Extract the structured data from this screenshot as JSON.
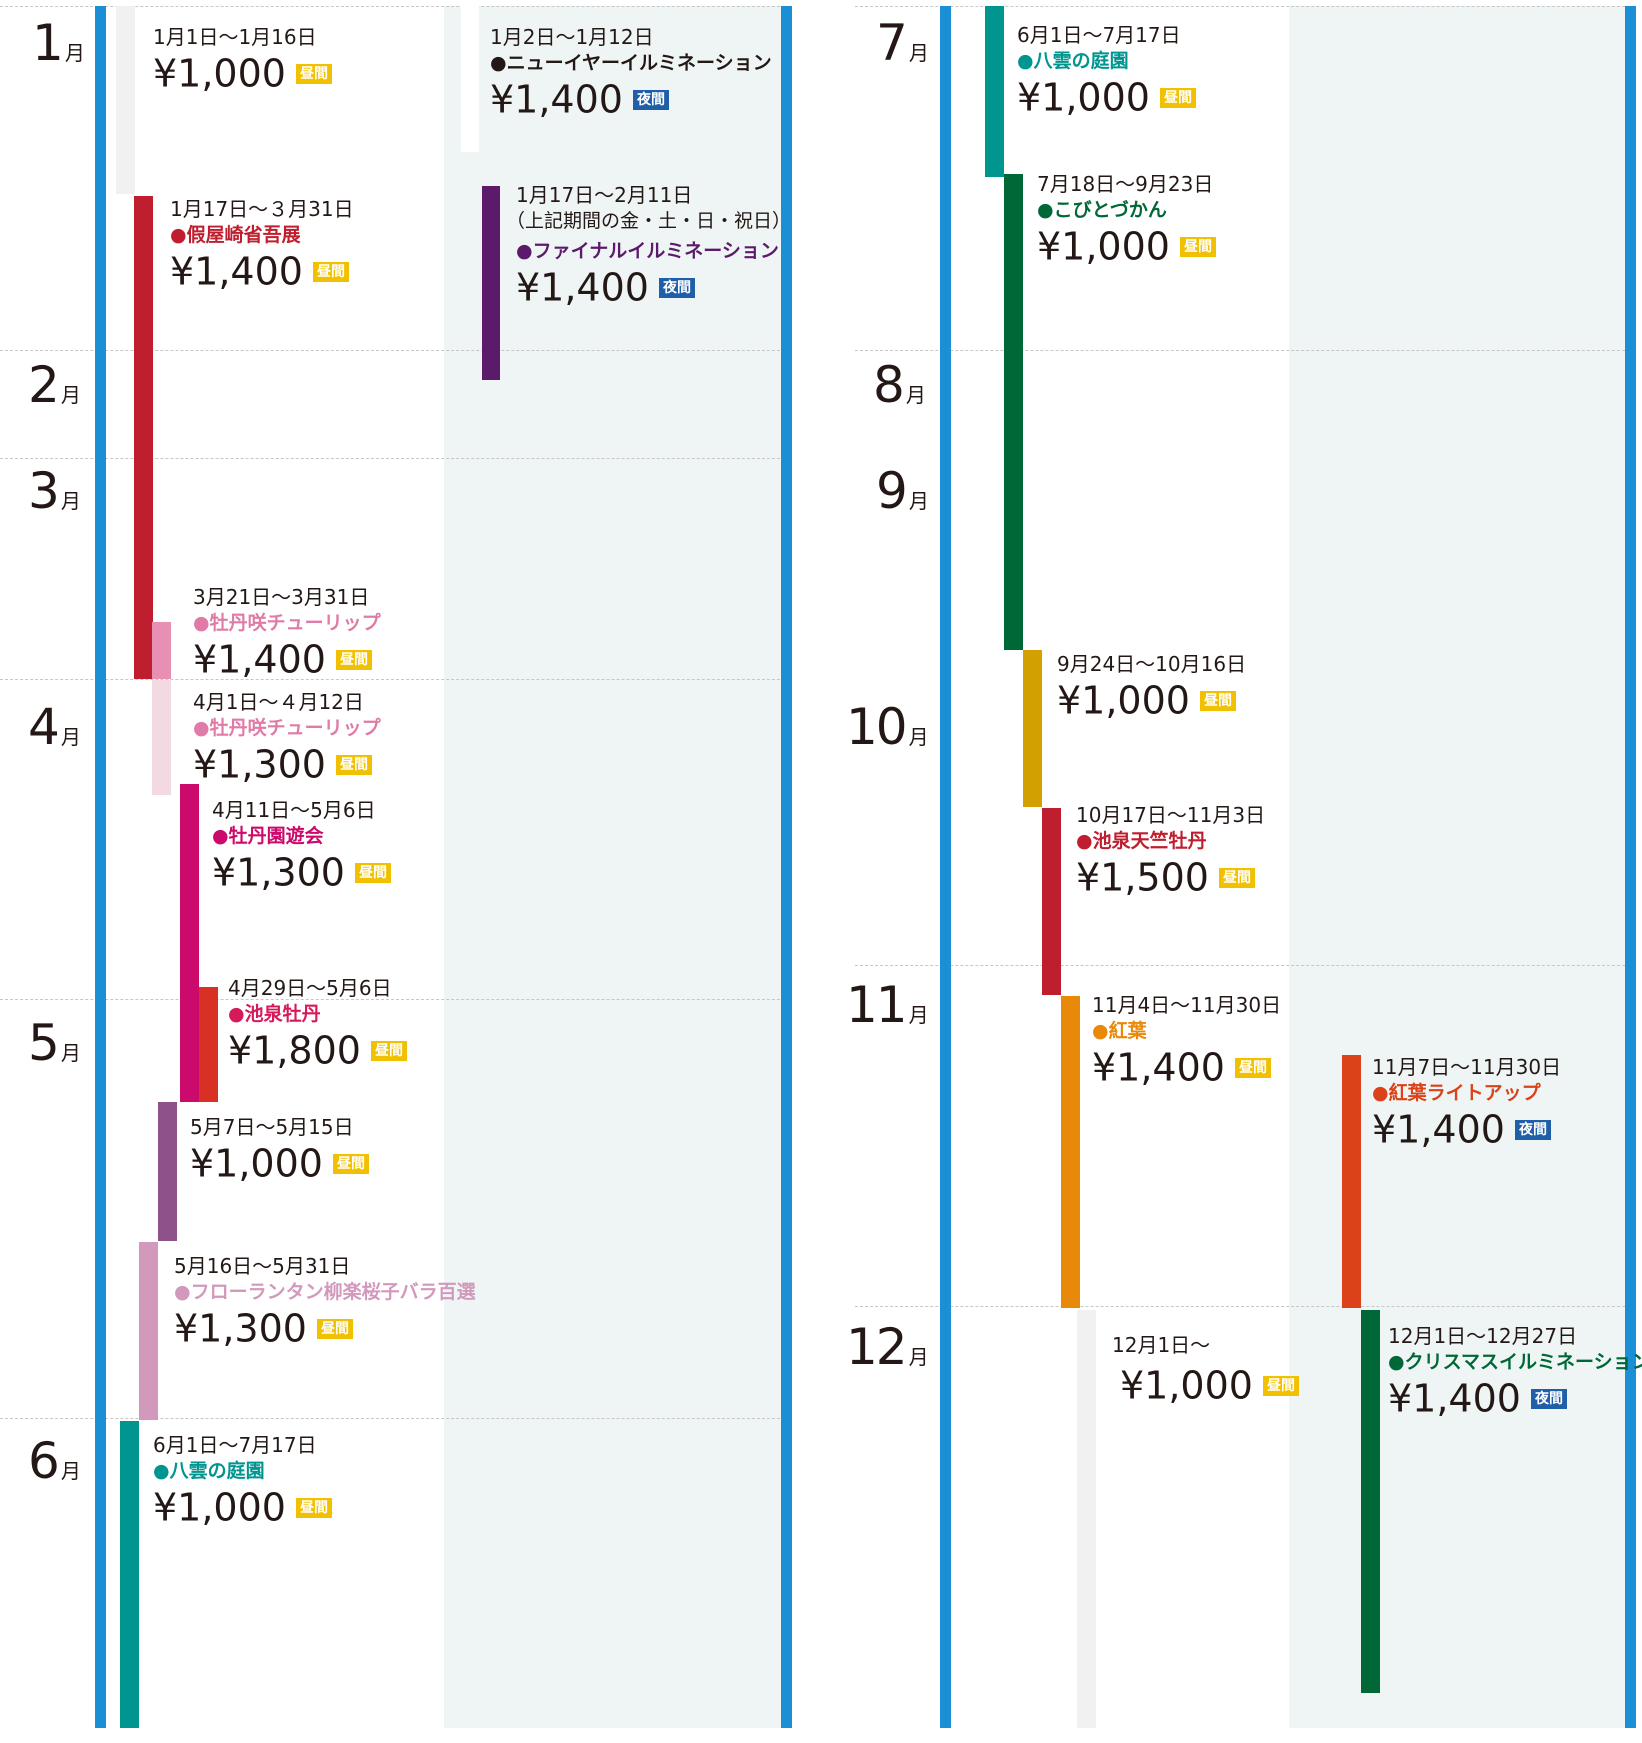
{
  "labels": {
    "month_suffix": "月",
    "day_badge": "昼間",
    "night_badge": "夜間",
    "bullet": "●"
  },
  "colors": {
    "rail": "#1b8fd6",
    "night_background": "#eef5f4",
    "day_badge": "#f1c000",
    "night_badge": "#1f5ea8"
  },
  "months": [
    "1",
    "2",
    "3",
    "4",
    "5",
    "6",
    "7",
    "8",
    "9",
    "10",
    "11",
    "12"
  ],
  "events": [
    {
      "date": "1月1日〜1月16日",
      "name": "",
      "price": "¥1,000",
      "badge": "昼間",
      "type": "day",
      "color": "#f1f1f1",
      "name_color": "#231815"
    },
    {
      "date": "1月2日〜1月12日",
      "name": "ニューイヤーイルミネーション",
      "price": "¥1,400",
      "badge": "夜間",
      "type": "night",
      "color": "#ffffff",
      "name_color": "#231815"
    },
    {
      "date": "1月17日〜３月31日",
      "name": "假屋崎省吾展",
      "price": "¥1,400",
      "badge": "昼間",
      "type": "day",
      "color": "#be1e2d",
      "name_color": "#be1e2d"
    },
    {
      "date": "1月17日〜2月11日",
      "note": "（上記期間の金・土・日・祝日）",
      "name": "ファイナルイルミネーション",
      "price": "¥1,400",
      "badge": "夜間",
      "type": "night",
      "color": "#5c1a6b",
      "name_color": "#5c1a6b"
    },
    {
      "date": "3月21日〜3月31日",
      "name": "牡丹咲チューリップ",
      "price": "¥1,400",
      "badge": "昼間",
      "type": "day",
      "color": "#e890b4",
      "name_color": "#e07aa7"
    },
    {
      "date": "4月1日〜４月12日",
      "name": "牡丹咲チューリップ",
      "price": "¥1,300",
      "badge": "昼間",
      "type": "day",
      "color": "#f2d9e2",
      "name_color": "#e07aa7"
    },
    {
      "date": "4月11日〜5月6日",
      "name": "牡丹園遊会",
      "price": "¥1,300",
      "badge": "昼間",
      "type": "day",
      "color": "#cc0a6b",
      "name_color": "#cc0a6b"
    },
    {
      "date": "4月29日〜5月6日",
      "name": "池泉牡丹",
      "price": "¥1,800",
      "badge": "昼間",
      "type": "day",
      "color": "#d93025",
      "name_color": "#d6195b"
    },
    {
      "date": "5月7日〜5月15日",
      "name": "",
      "price": "¥1,000",
      "badge": "昼間",
      "type": "day",
      "color": "#8e5189",
      "name_color": "#231815"
    },
    {
      "date": "5月16日〜5月31日",
      "name": "フローランタン柳楽桜子バラ百選",
      "price": "¥1,300",
      "badge": "昼間",
      "type": "day",
      "color": "#d399bd",
      "name_color": "#d399bd"
    },
    {
      "date": "6月1日〜7月17日",
      "name": "八雲の庭園",
      "price": "¥1,000",
      "badge": "昼間",
      "type": "day",
      "color": "#00958f",
      "name_color": "#00958f"
    },
    {
      "date": "6月1日〜7月17日",
      "name": "八雲の庭園",
      "price": "¥1,000",
      "badge": "昼間",
      "type": "day",
      "color": "#00958f",
      "name_color": "#00958f"
    },
    {
      "date": "7月18日〜9月23日",
      "name": "こびとづかん",
      "price": "¥1,000",
      "badge": "昼間",
      "type": "day",
      "color": "#006837",
      "name_color": "#006837"
    },
    {
      "date": "9月24日〜10月16日",
      "name": "",
      "price": "¥1,000",
      "badge": "昼間",
      "type": "day",
      "color": "#d2a000",
      "name_color": "#231815"
    },
    {
      "date": "10月17日〜11月3日",
      "name": "池泉天竺牡丹",
      "price": "¥1,500",
      "badge": "昼間",
      "type": "day",
      "color": "#be1e2d",
      "name_color": "#be1e2d"
    },
    {
      "date": "11月4日〜11月30日",
      "name": "紅葉",
      "price": "¥1,400",
      "badge": "昼間",
      "type": "day",
      "color": "#e8890a",
      "name_color": "#e8890a"
    },
    {
      "date": "11月7日〜11月30日",
      "name": "紅葉ライトアップ",
      "price": "¥1,400",
      "badge": "夜間",
      "type": "night",
      "color": "#dc4219",
      "name_color": "#dc4219"
    },
    {
      "date": "12月1日〜",
      "name": "",
      "price": "¥1,000",
      "badge": "昼間",
      "type": "day",
      "color": "#f1f1f1",
      "name_color": "#231815"
    },
    {
      "date": "12月1日〜12月27日",
      "name": "クリスマスイルミネーション",
      "price": "¥1,400",
      "badge": "夜間",
      "type": "night",
      "color": "#006837",
      "name_color": "#006837"
    }
  ]
}
